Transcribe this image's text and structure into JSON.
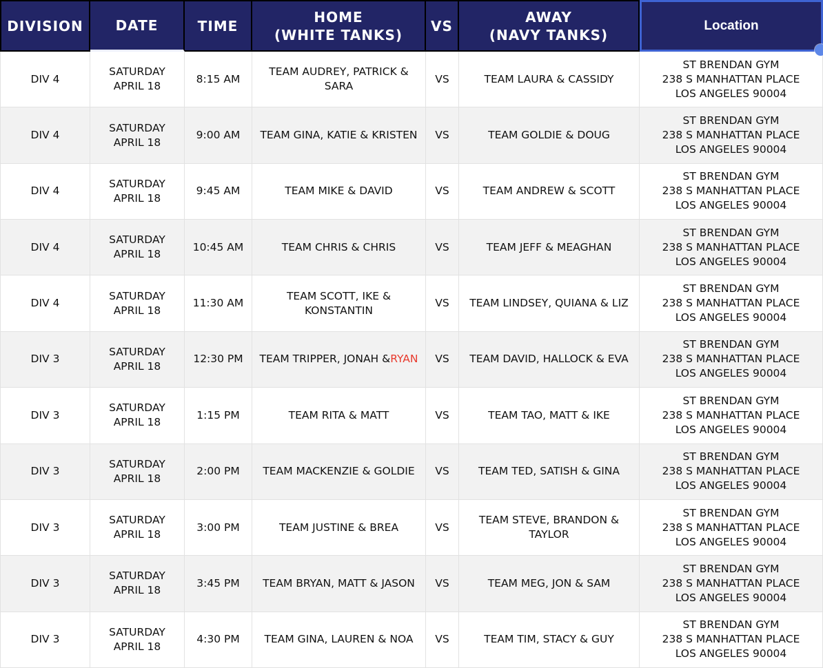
{
  "colors": {
    "header_bg": "#222566",
    "selection_blue": "#3e63d3",
    "handle_blue": "#5d87e8",
    "stripe": "#f2f2f2",
    "highlight_red": "#e8392c"
  },
  "table": {
    "headers": [
      {
        "id": "division",
        "label": "DIVISION"
      },
      {
        "id": "date",
        "label": "DATE"
      },
      {
        "id": "time",
        "label": "TIME"
      },
      {
        "id": "home",
        "label": "HOME\n(WHITE TANKS)"
      },
      {
        "id": "vs",
        "label": "VS"
      },
      {
        "id": "away",
        "label": "AWAY\n(NAVY TANKS)"
      },
      {
        "id": "location",
        "label": "Location",
        "selected": true
      }
    ],
    "rows": [
      {
        "division": "DIV 4",
        "date": "SATURDAY\nAPRIL 18",
        "time": "8:15 AM",
        "home": "TEAM AUDREY, PATRICK & SARA",
        "vs": "VS",
        "away": "TEAM LAURA & CASSIDY",
        "location": "ST BRENDAN GYM\n238 S MANHATTAN PLACE\nLOS ANGELES 90004"
      },
      {
        "division": "DIV 4",
        "date": "SATURDAY\nAPRIL 18",
        "time": "9:00 AM",
        "home": "TEAM GINA, KATIE & KRISTEN",
        "vs": "VS",
        "away": "TEAM GOLDIE & DOUG",
        "location": "ST BRENDAN GYM\n238 S MANHATTAN PLACE\nLOS ANGELES 90004"
      },
      {
        "division": "DIV 4",
        "date": "SATURDAY\nAPRIL 18",
        "time": "9:45 AM",
        "home": "TEAM MIKE & DAVID",
        "vs": "VS",
        "away": "TEAM ANDREW & SCOTT",
        "location": "ST BRENDAN GYM\n238 S MANHATTAN PLACE\nLOS ANGELES 90004"
      },
      {
        "division": "DIV 4",
        "date": "SATURDAY\nAPRIL 18",
        "time": "10:45 AM",
        "home": "TEAM CHRIS & CHRIS",
        "vs": "VS",
        "away": "TEAM JEFF & MEAGHAN",
        "location": "ST BRENDAN GYM\n238 S MANHATTAN PLACE\nLOS ANGELES 90004"
      },
      {
        "division": "DIV 4",
        "date": "SATURDAY\nAPRIL 18",
        "time": "11:30 AM",
        "home": "TEAM SCOTT, IKE & KONSTANTIN",
        "vs": "VS",
        "away": "TEAM LINDSEY, QUIANA & LIZ",
        "location": "ST BRENDAN GYM\n238 S MANHATTAN PLACE\nLOS ANGELES 90004"
      },
      {
        "division": "DIV 3",
        "date": "SATURDAY\nAPRIL 18",
        "time": "12:30 PM",
        "home": "TEAM TRIPPER, JONAH &",
        "home_highlight": "RYAN",
        "vs": "VS",
        "away": "TEAM DAVID, HALLOCK & EVA",
        "location": "ST BRENDAN GYM\n238 S MANHATTAN PLACE\nLOS ANGELES 90004"
      },
      {
        "division": "DIV 3",
        "date": "SATURDAY\nAPRIL 18",
        "time": "1:15 PM",
        "home": "TEAM RITA & MATT",
        "vs": "VS",
        "away": "TEAM TAO, MATT & IKE",
        "location": "ST BRENDAN GYM\n238 S MANHATTAN PLACE\nLOS ANGELES 90004"
      },
      {
        "division": "DIV 3",
        "date": "SATURDAY\nAPRIL 18",
        "time": "2:00 PM",
        "home": "TEAM MACKENZIE & GOLDIE",
        "vs": "VS",
        "away": "TEAM TED, SATISH & GINA",
        "location": "ST BRENDAN GYM\n238 S MANHATTAN PLACE\nLOS ANGELES 90004"
      },
      {
        "division": "DIV 3",
        "date": "SATURDAY\nAPRIL 18",
        "time": "3:00 PM",
        "home": "TEAM JUSTINE & BREA",
        "vs": "VS",
        "away": "TEAM STEVE, BRANDON & TAYLOR",
        "location": "ST BRENDAN GYM\n238 S MANHATTAN PLACE\nLOS ANGELES 90004"
      },
      {
        "division": "DIV 3",
        "date": "SATURDAY\nAPRIL 18",
        "time": "3:45 PM",
        "home": "TEAM BRYAN, MATT & JASON",
        "vs": "VS",
        "away": "TEAM MEG, JON & SAM",
        "location": "ST BRENDAN GYM\n238 S MANHATTAN PLACE\nLOS ANGELES 90004"
      },
      {
        "division": "DIV 3",
        "date": "SATURDAY\nAPRIL 18",
        "time": "4:30 PM",
        "home": "TEAM GINA, LAUREN & NOA",
        "vs": "VS",
        "away": "TEAM TIM, STACY & GUY",
        "location": "ST BRENDAN GYM\n238 S MANHATTAN PLACE\nLOS ANGELES 90004"
      }
    ]
  }
}
